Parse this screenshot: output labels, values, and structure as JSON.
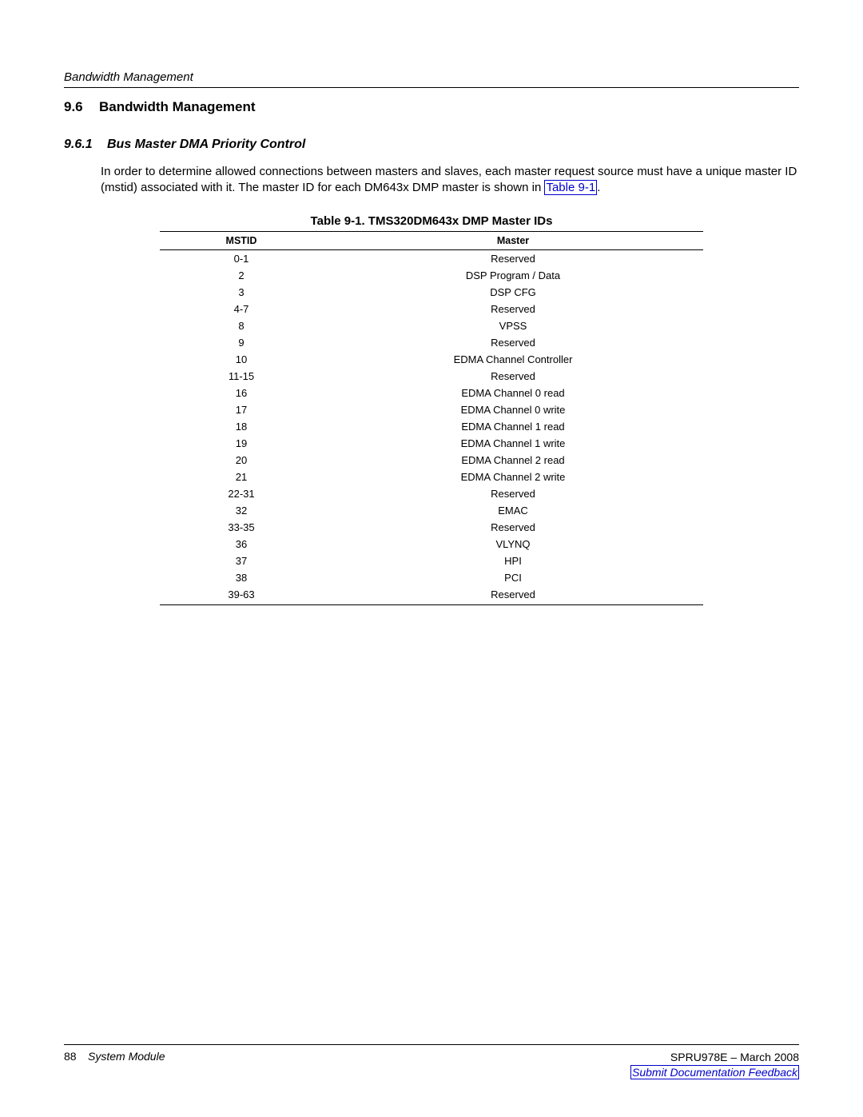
{
  "header": {
    "running_title": "Bandwidth Management"
  },
  "section": {
    "number": "9.6",
    "title": "Bandwidth Management"
  },
  "subsection": {
    "number": "9.6.1",
    "title": "Bus Master DMA Priority Control",
    "paragraph_pre": "In order to determine allowed connections between masters and slaves, each master request source must have a unique master ID (mstid) associated with it. The master ID for each DM643x DMP master is shown in ",
    "table_link_text": "Table 9-1",
    "paragraph_post": "."
  },
  "table": {
    "title": "Table 9-1. TMS320DM643x DMP Master IDs",
    "columns": [
      "MSTID",
      "Master"
    ],
    "col_classes": [
      "col-mstid",
      "col-master"
    ],
    "rows": [
      [
        "0-1",
        "Reserved"
      ],
      [
        "2",
        "DSP Program / Data"
      ],
      [
        "3",
        "DSP CFG"
      ],
      [
        "4-7",
        "Reserved"
      ],
      [
        "8",
        "VPSS"
      ],
      [
        "9",
        "Reserved"
      ],
      [
        "10",
        "EDMA Channel Controller"
      ],
      [
        "11-15",
        "Reserved"
      ],
      [
        "16",
        "EDMA Channel 0 read"
      ],
      [
        "17",
        "EDMA Channel 0 write"
      ],
      [
        "18",
        "EDMA Channel 1 read"
      ],
      [
        "19",
        "EDMA Channel 1 write"
      ],
      [
        "20",
        "EDMA Channel 2 read"
      ],
      [
        "21",
        "EDMA Channel 2 write"
      ],
      [
        "22-31",
        "Reserved"
      ],
      [
        "32",
        "EMAC"
      ],
      [
        "33-35",
        "Reserved"
      ],
      [
        "36",
        "VLYNQ"
      ],
      [
        "37",
        "HPI"
      ],
      [
        "38",
        "PCI"
      ],
      [
        "39-63",
        "Reserved"
      ]
    ]
  },
  "footer": {
    "page_number": "88",
    "left_title": "System Module",
    "right_doc": "SPRU978E – March 2008",
    "feedback_text": "Submit Documentation Feedback"
  },
  "style": {
    "link_color": "#0000cc",
    "text_color": "#000000",
    "bg_color": "#ffffff"
  }
}
